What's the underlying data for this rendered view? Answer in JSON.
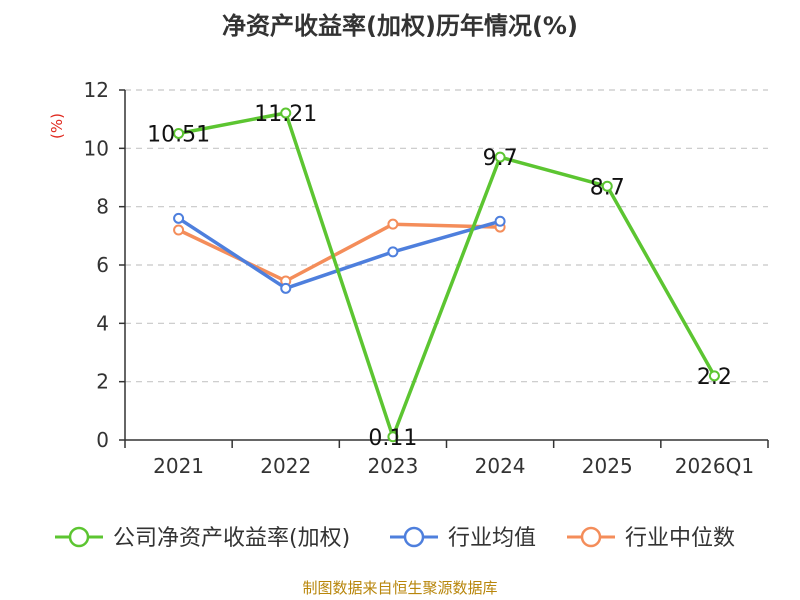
{
  "chart_data": {
    "type": "line",
    "title": "净资产收益率(加权)历年情况(%)",
    "ylabel": "(%)",
    "xlabel": "",
    "ylim": [
      0,
      12
    ],
    "y_ticks": [
      "0",
      "2",
      "4",
      "6",
      "8",
      "10",
      "12"
    ],
    "categories": [
      "2021",
      "2022",
      "2023",
      "2024",
      "2025",
      "2026Q1"
    ],
    "grid": true,
    "legend_position": "bottom",
    "series": [
      {
        "name": "公司净资产收益率(加权)",
        "color": "#5cc531",
        "values": [
          10.51,
          11.21,
          0.11,
          9.7,
          8.7,
          2.2
        ],
        "labels": [
          "10.51",
          "11.21",
          "0.11",
          "9.7",
          "8.7",
          "2.2"
        ]
      },
      {
        "name": "行业均值",
        "color": "#4e7fdd",
        "values": [
          7.6,
          5.2,
          6.45,
          7.5,
          null,
          null
        ]
      },
      {
        "name": "行业中位数",
        "color": "#f48d5a",
        "values": [
          7.2,
          5.45,
          7.4,
          7.3,
          null,
          null
        ]
      }
    ],
    "source": "制图数据来自恒生聚源数据库"
  }
}
